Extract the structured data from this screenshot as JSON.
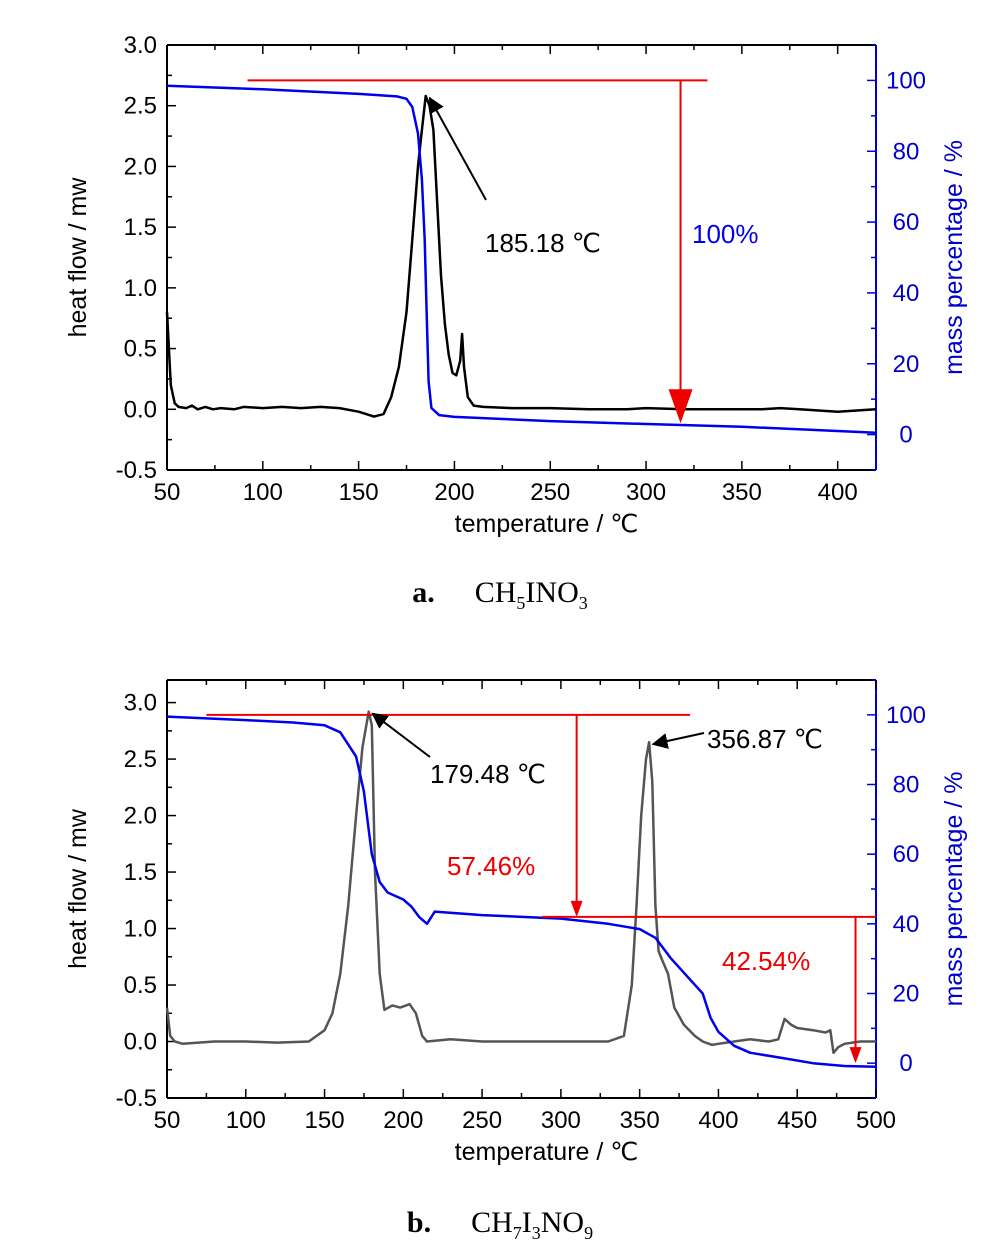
{
  "chart_data": [
    {
      "type": "line",
      "panel_label": "a.",
      "compound": {
        "main": "CH",
        "parts": [
          [
            "5",
            true
          ],
          [
            "INO",
            false
          ],
          [
            "3",
            true
          ]
        ]
      },
      "xlabel": "temperature / ℃",
      "ylabel": "heat flow / mw",
      "y2label": "mass percentage / %",
      "xlim": [
        50,
        420
      ],
      "ylim": [
        -0.5,
        3.0
      ],
      "y2lim": [
        -10,
        110
      ],
      "xticks": [
        50,
        100,
        150,
        200,
        250,
        300,
        350,
        400
      ],
      "yticks": [
        "-0.5",
        "0.0",
        "0.5",
        "1.0",
        "1.5",
        "2.0",
        "2.5",
        "3.0"
      ],
      "y2ticks": [
        0,
        20,
        40,
        60,
        80,
        100
      ],
      "colors": {
        "heat_flow": "#000000",
        "mass": "#0000ee",
        "arrows": "#ee0000",
        "y2axis": "#0000cc"
      },
      "series": [
        {
          "axis": "left",
          "points": [
            [
              50,
              0.8
            ],
            [
              51,
              0.5
            ],
            [
              52,
              0.2
            ],
            [
              54,
              0.05
            ],
            [
              56,
              0.02
            ],
            [
              60,
              0.01
            ],
            [
              63,
              0.03
            ],
            [
              66,
              0.0
            ],
            [
              70,
              0.02
            ],
            [
              74,
              0.0
            ],
            [
              78,
              0.01
            ],
            [
              85,
              0.0
            ],
            [
              90,
              0.02
            ],
            [
              100,
              0.01
            ],
            [
              110,
              0.02
            ],
            [
              120,
              0.01
            ],
            [
              130,
              0.02
            ],
            [
              140,
              0.01
            ],
            [
              150,
              -0.02
            ],
            [
              158,
              -0.06
            ],
            [
              163,
              -0.04
            ],
            [
              167,
              0.1
            ],
            [
              171,
              0.35
            ],
            [
              175,
              0.8
            ],
            [
              178,
              1.4
            ],
            [
              181,
              2.0
            ],
            [
              183,
              2.3
            ],
            [
              185,
              2.58
            ],
            [
              187,
              2.5
            ],
            [
              189,
              2.3
            ],
            [
              191,
              1.7
            ],
            [
              193,
              1.1
            ],
            [
              195,
              0.7
            ],
            [
              197,
              0.45
            ],
            [
              199,
              0.3
            ],
            [
              201,
              0.28
            ],
            [
              203,
              0.4
            ],
            [
              204,
              0.62
            ],
            [
              205,
              0.35
            ],
            [
              207,
              0.1
            ],
            [
              210,
              0.03
            ],
            [
              215,
              0.02
            ],
            [
              230,
              0.01
            ],
            [
              250,
              0.01
            ],
            [
              270,
              0.0
            ],
            [
              290,
              0.0
            ],
            [
              300,
              0.01
            ],
            [
              320,
              0.0
            ],
            [
              340,
              0.0
            ],
            [
              360,
              0.0
            ],
            [
              370,
              0.01
            ],
            [
              380,
              0.0
            ],
            [
              400,
              -0.02
            ],
            [
              410,
              -0.01
            ],
            [
              420,
              0.0
            ]
          ]
        },
        {
          "axis": "right",
          "points": [
            [
              50,
              98.5
            ],
            [
              100,
              97.5
            ],
            [
              150,
              96.2
            ],
            [
              170,
              95.5
            ],
            [
              175,
              94.8
            ],
            [
              178,
              92.5
            ],
            [
              181,
              85
            ],
            [
              183,
              72
            ],
            [
              184.5,
              55
            ],
            [
              185.5,
              35
            ],
            [
              186.5,
              15
            ],
            [
              188,
              7.5
            ],
            [
              192,
              5.5
            ],
            [
              200,
              5.0
            ],
            [
              250,
              3.8
            ],
            [
              300,
              3.0
            ],
            [
              350,
              2.2
            ],
            [
              400,
              1.0
            ],
            [
              420,
              0.5
            ]
          ]
        }
      ],
      "annotations": {
        "peak": {
          "label": "185.18 ℃",
          "x": 185,
          "y": 2.58
        },
        "loss": {
          "label": "100%",
          "color": "#0000ee"
        },
        "h_line": {
          "x1": 92,
          "x2": 332,
          "y2": 100
        },
        "v_arrow": {
          "x": 318,
          "y2_from": 100,
          "y2_to": 3.2
        }
      }
    },
    {
      "type": "line",
      "panel_label": "b.",
      "compound": {
        "main": "CH",
        "parts": [
          [
            "7",
            true
          ],
          [
            "I",
            false
          ],
          [
            "3",
            true
          ],
          [
            "NO",
            false
          ],
          [
            "9",
            true
          ]
        ]
      },
      "xlabel": "temperature / ℃",
      "ylabel": "heat flow / mw",
      "y2label": "mass percentage / %",
      "xlim": [
        50,
        500
      ],
      "ylim": [
        -0.5,
        3.2
      ],
      "y2lim": [
        -10,
        110
      ],
      "xticks": [
        50,
        100,
        150,
        200,
        250,
        300,
        350,
        400,
        450,
        500
      ],
      "yticks": [
        "-0.5",
        "0.0",
        "0.5",
        "1.0",
        "1.5",
        "2.0",
        "2.5",
        "3.0"
      ],
      "y2ticks": [
        0,
        20,
        40,
        60,
        80,
        100
      ],
      "colors": {
        "heat_flow": "#555555",
        "mass": "#0000ee",
        "arrows": "#ee0000",
        "y2axis": "#0000cc"
      },
      "series": [
        {
          "axis": "left",
          "points": [
            [
              50,
              0.3
            ],
            [
              52,
              0.05
            ],
            [
              55,
              0.0
            ],
            [
              60,
              -0.02
            ],
            [
              80,
              0.0
            ],
            [
              100,
              0.0
            ],
            [
              120,
              -0.01
            ],
            [
              140,
              0.0
            ],
            [
              150,
              0.1
            ],
            [
              155,
              0.25
            ],
            [
              160,
              0.6
            ],
            [
              165,
              1.2
            ],
            [
              170,
              2.0
            ],
            [
              174,
              2.6
            ],
            [
              178,
              2.92
            ],
            [
              180,
              2.8
            ],
            [
              182,
              1.5
            ],
            [
              185,
              0.6
            ],
            [
              188,
              0.28
            ],
            [
              193,
              0.32
            ],
            [
              198,
              0.3
            ],
            [
              204,
              0.33
            ],
            [
              208,
              0.25
            ],
            [
              212,
              0.05
            ],
            [
              215,
              0.0
            ],
            [
              230,
              0.02
            ],
            [
              250,
              0.0
            ],
            [
              280,
              0.0
            ],
            [
              310,
              0.0
            ],
            [
              330,
              0.0
            ],
            [
              340,
              0.05
            ],
            [
              345,
              0.5
            ],
            [
              348,
              1.2
            ],
            [
              351,
              2.0
            ],
            [
              354,
              2.5
            ],
            [
              356,
              2.65
            ],
            [
              358,
              2.3
            ],
            [
              360,
              1.2
            ],
            [
              362,
              0.8
            ],
            [
              364,
              0.73
            ],
            [
              368,
              0.6
            ],
            [
              372,
              0.3
            ],
            [
              378,
              0.15
            ],
            [
              385,
              0.05
            ],
            [
              390,
              0.0
            ],
            [
              396,
              -0.03
            ],
            [
              400,
              -0.02
            ],
            [
              410,
              0.0
            ],
            [
              420,
              0.02
            ],
            [
              432,
              0.0
            ],
            [
              438,
              0.02
            ],
            [
              442,
              0.2
            ],
            [
              446,
              0.15
            ],
            [
              450,
              0.12
            ],
            [
              460,
              0.1
            ],
            [
              468,
              0.08
            ],
            [
              471,
              0.1
            ],
            [
              473,
              -0.1
            ],
            [
              476,
              -0.05
            ],
            [
              480,
              -0.02
            ],
            [
              490,
              0.0
            ],
            [
              500,
              0.0
            ]
          ]
        },
        {
          "axis": "right",
          "points": [
            [
              50,
              99.5
            ],
            [
              100,
              98.5
            ],
            [
              130,
              97.8
            ],
            [
              150,
              97.0
            ],
            [
              160,
              95
            ],
            [
              170,
              88
            ],
            [
              175,
              78
            ],
            [
              180,
              60
            ],
            [
              185,
              52
            ],
            [
              190,
              49
            ],
            [
              200,
              47
            ],
            [
              205,
              45
            ],
            [
              210,
              42
            ],
            [
              215,
              40
            ],
            [
              220,
              43.5
            ],
            [
              250,
              42.5
            ],
            [
              300,
              41.5
            ],
            [
              330,
              40
            ],
            [
              350,
              38.5
            ],
            [
              360,
              36
            ],
            [
              370,
              30
            ],
            [
              380,
              25
            ],
            [
              390,
              20
            ],
            [
              395,
              13
            ],
            [
              400,
              9
            ],
            [
              410,
              5
            ],
            [
              420,
              3
            ],
            [
              440,
              1.5
            ],
            [
              460,
              0
            ],
            [
              480,
              -0.8
            ],
            [
              500,
              -1.0
            ]
          ]
        }
      ],
      "annotations": {
        "peak1": {
          "label": "179.48 ℃",
          "x": 178,
          "y": 2.92
        },
        "peak2": {
          "label": "356.87 ℃",
          "x": 356,
          "y": 2.65
        },
        "loss1": {
          "label": "57.46%",
          "color": "#ee0000"
        },
        "loss2": {
          "label": "42.54%",
          "color": "#ee0000"
        },
        "h_line1": {
          "x1": 75,
          "x2": 382,
          "y2": 100
        },
        "v_arrow1": {
          "x": 310,
          "y2_from": 100,
          "y2_to": 42
        },
        "h_line2": {
          "x1": 288,
          "x2": 500,
          "y2": 42
        },
        "v_arrow2": {
          "x": 487,
          "y2_from": 42,
          "y2_to": 0
        }
      }
    }
  ]
}
